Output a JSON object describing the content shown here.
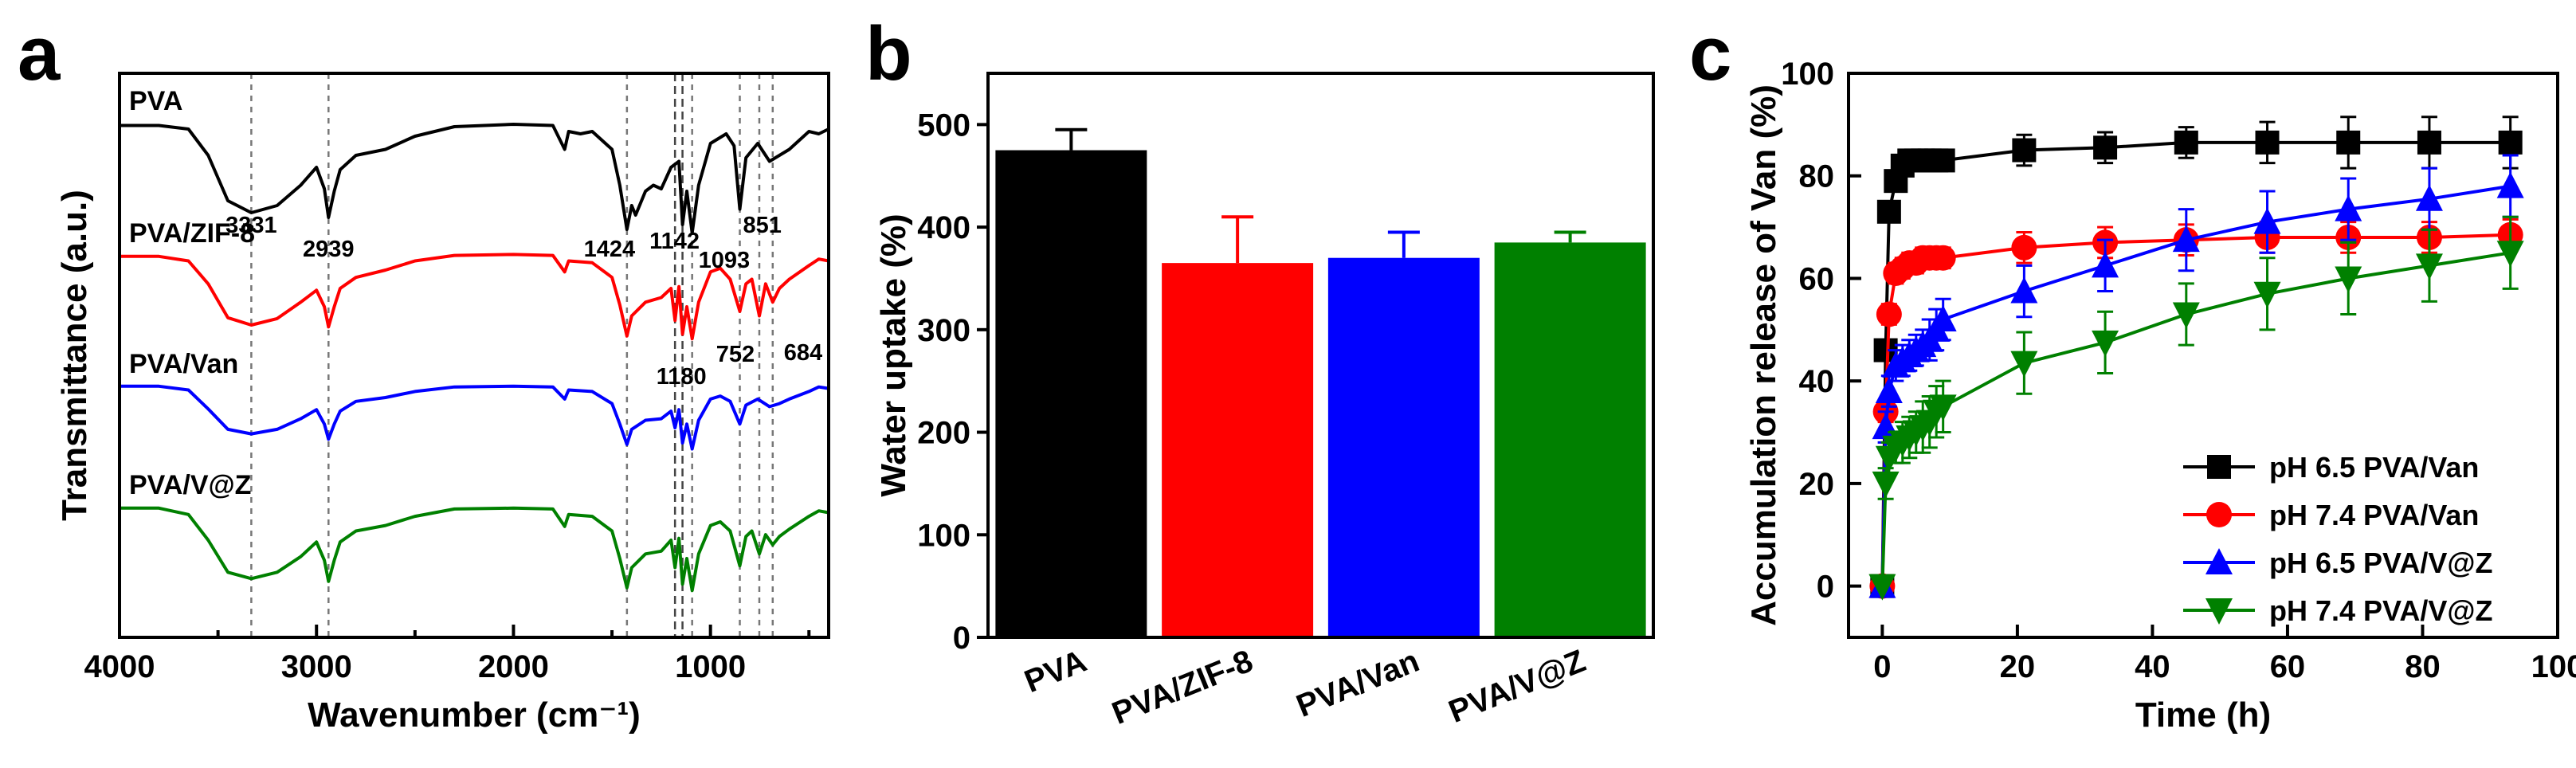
{
  "panels": {
    "a": {
      "letter": "a"
    },
    "b": {
      "letter": "b"
    },
    "c": {
      "letter": "c"
    }
  },
  "chart_data": [
    {
      "panel": "a",
      "type": "line",
      "xlabel": "Wavenumber (cm⁻¹)",
      "ylabel": "Transmittance (a.u.)",
      "xlim": [
        4000,
        400
      ],
      "x_reversed": true,
      "x_ticks": [
        4000,
        3000,
        2000,
        1000
      ],
      "y_ticks_shown": false,
      "grid": false,
      "reference_lines_x": [
        3331,
        2939,
        1424,
        1180,
        1142,
        1093,
        851,
        752,
        684
      ],
      "series": [
        {
          "name": "PVA",
          "color": "#000000",
          "points": [
            [
              4000,
              0.05
            ],
            [
              3800,
              0.05
            ],
            [
              3650,
              0.08
            ],
            [
              3550,
              0.3
            ],
            [
              3450,
              0.68
            ],
            [
              3331,
              0.78
            ],
            [
              3200,
              0.72
            ],
            [
              3080,
              0.55
            ],
            [
              3000,
              0.4
            ],
            [
              2960,
              0.58
            ],
            [
              2939,
              0.82
            ],
            [
              2910,
              0.6
            ],
            [
              2880,
              0.42
            ],
            [
              2800,
              0.3
            ],
            [
              2650,
              0.25
            ],
            [
              2500,
              0.14
            ],
            [
              2300,
              0.06
            ],
            [
              2000,
              0.04
            ],
            [
              1800,
              0.05
            ],
            [
              1740,
              0.25
            ],
            [
              1720,
              0.1
            ],
            [
              1660,
              0.12
            ],
            [
              1600,
              0.1
            ],
            [
              1500,
              0.25
            ],
            [
              1460,
              0.55
            ],
            [
              1424,
              0.92
            ],
            [
              1400,
              0.72
            ],
            [
              1380,
              0.8
            ],
            [
              1330,
              0.6
            ],
            [
              1290,
              0.55
            ],
            [
              1250,
              0.58
            ],
            [
              1200,
              0.4
            ],
            [
              1160,
              0.35
            ],
            [
              1142,
              0.88
            ],
            [
              1120,
              0.6
            ],
            [
              1093,
              0.95
            ],
            [
              1060,
              0.55
            ],
            [
              1000,
              0.2
            ],
            [
              950,
              0.15
            ],
            [
              920,
              0.12
            ],
            [
              880,
              0.22
            ],
            [
              851,
              0.75
            ],
            [
              820,
              0.32
            ],
            [
              760,
              0.2
            ],
            [
              700,
              0.35
            ],
            [
              650,
              0.3
            ],
            [
              600,
              0.25
            ],
            [
              500,
              0.1
            ],
            [
              450,
              0.12
            ],
            [
              400,
              0.08
            ]
          ],
          "peak_labels": [
            3331,
            2939,
            1424,
            1142,
            1093,
            851
          ]
        },
        {
          "name": "PVA/ZIF-8",
          "color": "#ff0000",
          "points": [
            [
              4000,
              0.05
            ],
            [
              3800,
              0.05
            ],
            [
              3650,
              0.1
            ],
            [
              3550,
              0.35
            ],
            [
              3450,
              0.72
            ],
            [
              3331,
              0.8
            ],
            [
              3200,
              0.73
            ],
            [
              3080,
              0.55
            ],
            [
              3000,
              0.42
            ],
            [
              2960,
              0.6
            ],
            [
              2939,
              0.82
            ],
            [
              2910,
              0.6
            ],
            [
              2880,
              0.4
            ],
            [
              2800,
              0.28
            ],
            [
              2650,
              0.2
            ],
            [
              2500,
              0.1
            ],
            [
              2300,
              0.04
            ],
            [
              2000,
              0.03
            ],
            [
              1800,
              0.04
            ],
            [
              1740,
              0.22
            ],
            [
              1720,
              0.1
            ],
            [
              1600,
              0.12
            ],
            [
              1500,
              0.28
            ],
            [
              1460,
              0.58
            ],
            [
              1424,
              0.92
            ],
            [
              1400,
              0.7
            ],
            [
              1330,
              0.55
            ],
            [
              1250,
              0.5
            ],
            [
              1200,
              0.4
            ],
            [
              1180,
              0.75
            ],
            [
              1160,
              0.38
            ],
            [
              1142,
              0.9
            ],
            [
              1120,
              0.6
            ],
            [
              1093,
              0.95
            ],
            [
              1060,
              0.55
            ],
            [
              1000,
              0.22
            ],
            [
              950,
              0.18
            ],
            [
              900,
              0.3
            ],
            [
              851,
              0.65
            ],
            [
              820,
              0.35
            ],
            [
              790,
              0.3
            ],
            [
              752,
              0.7
            ],
            [
              720,
              0.35
            ],
            [
              684,
              0.55
            ],
            [
              650,
              0.4
            ],
            [
              600,
              0.3
            ],
            [
              500,
              0.15
            ],
            [
              450,
              0.08
            ],
            [
              400,
              0.1
            ]
          ],
          "peak_labels": [
            1180,
            752,
            684
          ]
        },
        {
          "name": "PVA/Van",
          "color": "#0000ff",
          "points": [
            [
              4000,
              0.05
            ],
            [
              3800,
              0.05
            ],
            [
              3650,
              0.1
            ],
            [
              3550,
              0.35
            ],
            [
              3450,
              0.62
            ],
            [
              3331,
              0.68
            ],
            [
              3200,
              0.62
            ],
            [
              3080,
              0.48
            ],
            [
              3000,
              0.36
            ],
            [
              2960,
              0.55
            ],
            [
              2939,
              0.75
            ],
            [
              2910,
              0.55
            ],
            [
              2880,
              0.38
            ],
            [
              2800,
              0.25
            ],
            [
              2650,
              0.2
            ],
            [
              2500,
              0.12
            ],
            [
              2300,
              0.06
            ],
            [
              2000,
              0.05
            ],
            [
              1800,
              0.06
            ],
            [
              1740,
              0.22
            ],
            [
              1720,
              0.1
            ],
            [
              1600,
              0.12
            ],
            [
              1500,
              0.28
            ],
            [
              1460,
              0.55
            ],
            [
              1424,
              0.82
            ],
            [
              1400,
              0.62
            ],
            [
              1330,
              0.5
            ],
            [
              1250,
              0.48
            ],
            [
              1200,
              0.38
            ],
            [
              1180,
              0.6
            ],
            [
              1160,
              0.36
            ],
            [
              1142,
              0.8
            ],
            [
              1120,
              0.55
            ],
            [
              1093,
              0.88
            ],
            [
              1060,
              0.5
            ],
            [
              1000,
              0.22
            ],
            [
              950,
              0.18
            ],
            [
              900,
              0.25
            ],
            [
              851,
              0.55
            ],
            [
              820,
              0.3
            ],
            [
              760,
              0.22
            ],
            [
              700,
              0.32
            ],
            [
              650,
              0.28
            ],
            [
              600,
              0.22
            ],
            [
              500,
              0.12
            ],
            [
              450,
              0.06
            ],
            [
              400,
              0.08
            ]
          ],
          "peak_labels": []
        },
        {
          "name": "PVA/V@Z",
          "color": "#008000",
          "points": [
            [
              4000,
              0.05
            ],
            [
              3800,
              0.05
            ],
            [
              3650,
              0.12
            ],
            [
              3550,
              0.4
            ],
            [
              3450,
              0.75
            ],
            [
              3331,
              0.82
            ],
            [
              3200,
              0.75
            ],
            [
              3080,
              0.58
            ],
            [
              3000,
              0.42
            ],
            [
              2960,
              0.62
            ],
            [
              2939,
              0.85
            ],
            [
              2910,
              0.62
            ],
            [
              2880,
              0.42
            ],
            [
              2800,
              0.3
            ],
            [
              2650,
              0.24
            ],
            [
              2500,
              0.14
            ],
            [
              2300,
              0.06
            ],
            [
              2000,
              0.05
            ],
            [
              1800,
              0.06
            ],
            [
              1740,
              0.25
            ],
            [
              1720,
              0.12
            ],
            [
              1600,
              0.14
            ],
            [
              1500,
              0.3
            ],
            [
              1460,
              0.6
            ],
            [
              1424,
              0.92
            ],
            [
              1400,
              0.7
            ],
            [
              1330,
              0.55
            ],
            [
              1250,
              0.52
            ],
            [
              1200,
              0.4
            ],
            [
              1180,
              0.7
            ],
            [
              1160,
              0.38
            ],
            [
              1142,
              0.88
            ],
            [
              1120,
              0.6
            ],
            [
              1093,
              0.95
            ],
            [
              1060,
              0.55
            ],
            [
              1000,
              0.24
            ],
            [
              950,
              0.2
            ],
            [
              900,
              0.3
            ],
            [
              851,
              0.68
            ],
            [
              820,
              0.36
            ],
            [
              790,
              0.3
            ],
            [
              752,
              0.55
            ],
            [
              720,
              0.34
            ],
            [
              684,
              0.45
            ],
            [
              650,
              0.36
            ],
            [
              600,
              0.28
            ],
            [
              500,
              0.14
            ],
            [
              450,
              0.08
            ],
            [
              400,
              0.1
            ]
          ],
          "peak_labels": []
        }
      ]
    },
    {
      "panel": "b",
      "type": "bar",
      "xlabel": "",
      "ylabel": "Water uptake (%)",
      "ylim": [
        0,
        550
      ],
      "y_ticks": [
        0,
        100,
        200,
        300,
        400,
        500
      ],
      "grid": false,
      "categories": [
        "PVA",
        "PVA/ZIF-8",
        "PVA/Van",
        "PVA/V@Z"
      ],
      "values": [
        475,
        365,
        370,
        385
      ],
      "errors": [
        20,
        45,
        25,
        10
      ],
      "colors": [
        "#000000",
        "#ff0000",
        "#0000ff",
        "#008000"
      ]
    },
    {
      "panel": "c",
      "type": "line",
      "xlabel": "Time (h)",
      "ylabel": "Accumulation release of Van (%)",
      "xlim": [
        -5,
        100
      ],
      "ylim": [
        -10,
        100
      ],
      "x_ticks": [
        0,
        20,
        40,
        60,
        80,
        100
      ],
      "y_ticks": [
        0,
        20,
        40,
        60,
        80,
        100
      ],
      "grid": false,
      "legend": "bottom-right",
      "x": [
        0,
        0.5,
        1,
        2,
        3,
        4,
        5,
        6,
        7,
        8,
        9,
        21,
        33,
        45,
        57,
        69,
        81,
        93
      ],
      "series": [
        {
          "name": "pH 6.5 PVA/Van",
          "color": "#000000",
          "marker": "square",
          "values": [
            0,
            46,
            73,
            79,
            82,
            83,
            83,
            83,
            83,
            83,
            83,
            85,
            85.5,
            86.5,
            86.5,
            86.5,
            86.5,
            86.5
          ],
          "errors": [
            0,
            2,
            2,
            2,
            2,
            2,
            2,
            2,
            2,
            2,
            2,
            3,
            3,
            3,
            4,
            5,
            5,
            5
          ]
        },
        {
          "name": "pH 7.4 PVA/Van",
          "color": "#ff0000",
          "marker": "circle",
          "values": [
            0,
            34,
            53,
            61,
            62,
            63,
            63,
            64,
            64,
            64,
            64,
            66,
            67,
            67.5,
            68,
            68,
            68,
            68.5
          ],
          "errors": [
            0,
            2,
            2,
            2,
            2,
            2,
            2,
            2,
            2,
            2,
            2,
            3,
            3,
            3,
            3,
            3,
            3,
            3
          ]
        },
        {
          "name": "pH 6.5 PVA/V@Z",
          "color": "#0000ff",
          "marker": "triangle-up",
          "values": [
            0,
            31,
            38,
            43,
            44,
            45,
            46,
            47,
            48,
            50,
            52,
            57.5,
            62.5,
            67.5,
            71,
            73.5,
            75.5,
            78
          ],
          "errors": [
            0,
            3,
            3,
            3,
            3,
            3,
            3,
            3,
            4,
            4,
            4,
            5,
            5,
            6,
            6,
            6,
            6,
            6
          ]
        },
        {
          "name": "pH 7.4 PVA/V@Z",
          "color": "#008000",
          "marker": "triangle-down",
          "values": [
            0,
            20,
            25,
            27,
            28,
            29,
            30,
            31,
            32,
            34,
            35,
            43.5,
            47.5,
            53,
            57,
            60,
            62.5,
            65
          ],
          "errors": [
            0,
            3,
            3,
            3,
            4,
            4,
            4,
            5,
            5,
            5,
            5,
            6,
            6,
            6,
            7,
            7,
            7,
            7
          ]
        }
      ]
    }
  ]
}
